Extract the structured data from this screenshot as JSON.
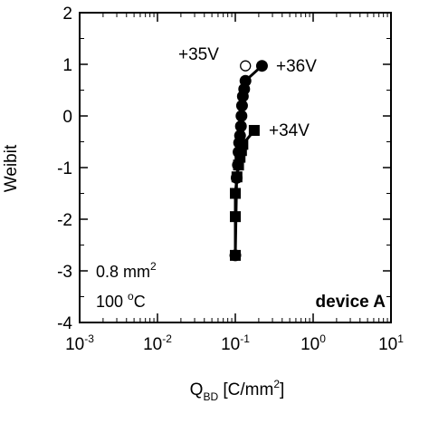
{
  "chart_data": {
    "type": "scatter",
    "xlabel_main": "Q",
    "xlabel_sub": "BD",
    "xlabel_unit_pre": " [C/mm",
    "xlabel_unit_sup": "2",
    "xlabel_unit_post": "]",
    "ylabel": "Weibit",
    "x_scale": "log",
    "xlim": [
      0.001,
      10
    ],
    "ylim": [
      -4,
      2
    ],
    "x_ticks": [
      {
        "value": 0.001,
        "base": "10",
        "exp": "-3"
      },
      {
        "value": 0.01,
        "base": "10",
        "exp": "-2"
      },
      {
        "value": 0.1,
        "base": "10",
        "exp": "-1"
      },
      {
        "value": 1,
        "base": "10",
        "exp": "0"
      },
      {
        "value": 10,
        "base": "10",
        "exp": "1"
      }
    ],
    "y_ticks": [
      {
        "value": 2,
        "label": "2"
      },
      {
        "value": 1,
        "label": "1"
      },
      {
        "value": 0,
        "label": "0"
      },
      {
        "value": -1,
        "label": "-1"
      },
      {
        "value": -2,
        "label": "-2"
      },
      {
        "value": -3,
        "label": "-3"
      },
      {
        "value": -4,
        "label": "-4"
      }
    ],
    "grid": false,
    "series": [
      {
        "label": "+34V",
        "marker": "square",
        "points": [
          [
            0.1,
            -2.7
          ],
          [
            0.1,
            -1.95
          ],
          [
            0.1,
            -1.5
          ],
          [
            0.105,
            -1.18
          ],
          [
            0.11,
            -0.95
          ],
          [
            0.115,
            -0.8
          ],
          [
            0.12,
            -0.67
          ],
          [
            0.125,
            -0.55
          ],
          [
            0.175,
            -0.28
          ]
        ]
      },
      {
        "label": "+36V",
        "marker": "circle",
        "points": [
          [
            0.1,
            -2.7
          ],
          [
            0.104,
            -1.2
          ],
          [
            0.108,
            -0.95
          ],
          [
            0.11,
            -0.7
          ],
          [
            0.112,
            -0.52
          ],
          [
            0.115,
            -0.38
          ],
          [
            0.118,
            -0.2
          ],
          [
            0.12,
            0.0
          ],
          [
            0.122,
            0.2
          ],
          [
            0.125,
            0.38
          ],
          [
            0.13,
            0.52
          ],
          [
            0.135,
            0.68
          ],
          [
            0.22,
            0.97
          ]
        ]
      },
      {
        "label": "+35V",
        "marker": "open-circle",
        "line": false,
        "points": [
          [
            0.135,
            0.97
          ]
        ]
      }
    ],
    "annotations": {
      "area_main": "0.8 mm",
      "area_sup": "2",
      "temp_main": "100 ",
      "temp_sup": "o",
      "temp_post": "C",
      "device": "device A"
    }
  }
}
